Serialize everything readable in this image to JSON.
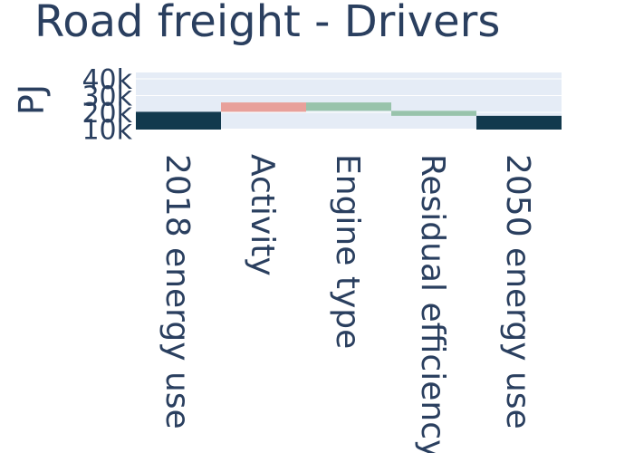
{
  "chart_data": {
    "type": "waterfall",
    "title": "Road freight - Drivers",
    "ylabel": "PJ",
    "categories": [
      "2018 energy use",
      "Activity",
      "Engine type",
      "Residual efficiency",
      "2050 energy use"
    ],
    "measure": [
      "absolute",
      "relative",
      "relative",
      "relative",
      "total"
    ],
    "values": [
      20300,
      5600,
      -5000,
      -3000,
      17900
    ],
    "colors": {
      "total": "#12394d",
      "increase": "#e8a09a",
      "decrease": "#98c3ab"
    },
    "ylim": [
      9700,
      43800
    ],
    "yticks": [
      {
        "value": 10000,
        "label": "10k"
      },
      {
        "value": 20000,
        "label": "20k"
      },
      {
        "value": 30000,
        "label": "30k"
      },
      {
        "value": 40000,
        "label": "40k"
      }
    ],
    "grid": true
  }
}
